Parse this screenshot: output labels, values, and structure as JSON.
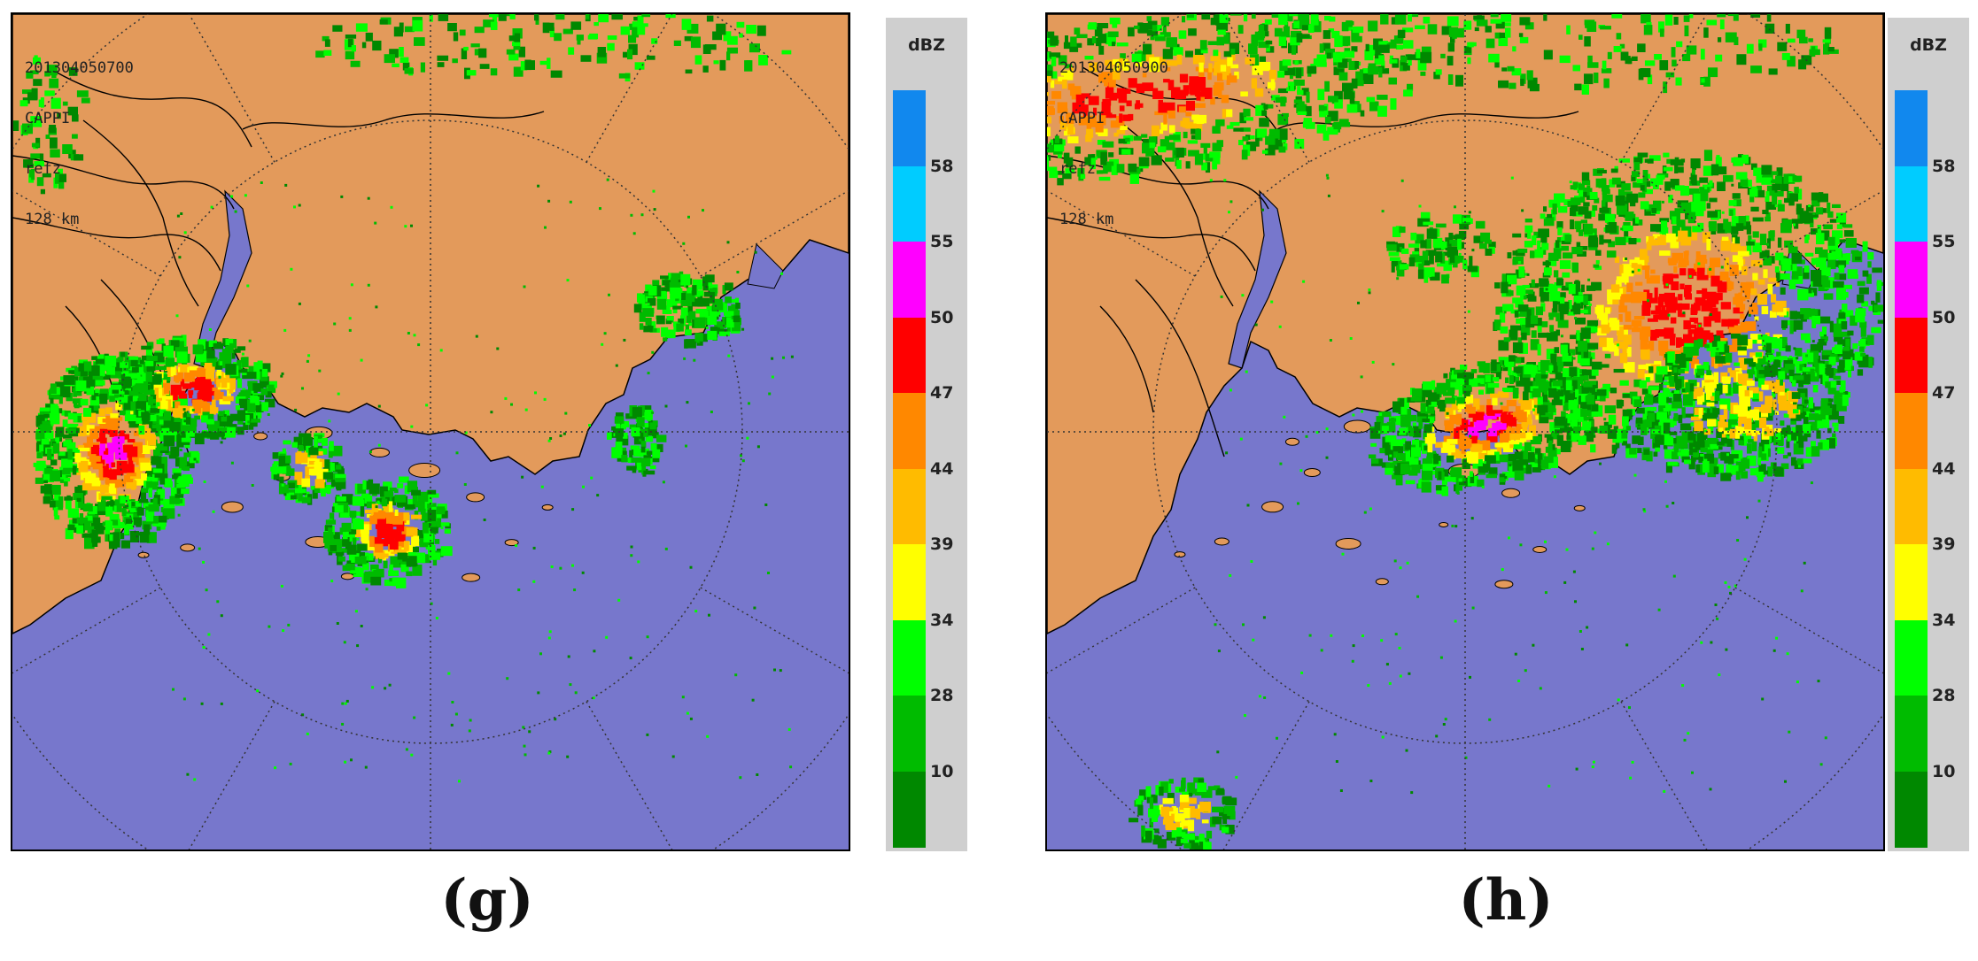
{
  "panels": [
    {
      "id": "g",
      "info_lines": [
        "201304050700",
        "CAPPI",
        "refz",
        "128 km"
      ],
      "caption": "(g)"
    },
    {
      "id": "h",
      "info_lines": [
        "201304050900",
        "CAPPI",
        "refz",
        "128 km"
      ],
      "caption": "(h)"
    }
  ],
  "colorbar": {
    "unit": "dBZ",
    "labels": [
      "58",
      "55",
      "50",
      "47",
      "44",
      "39",
      "34",
      "28",
      "10"
    ],
    "colors": [
      "#1188ee",
      "#00ccff",
      "#ff00ff",
      "#ff0000",
      "#ff8800",
      "#ffbb00",
      "#ffff00",
      "#00ff00",
      "#00bb00",
      "#008800"
    ]
  },
  "map_colors": {
    "land": "#e39a5b",
    "sea": "#7777cc",
    "coast": "#000000",
    "range_ring": "#333333"
  }
}
